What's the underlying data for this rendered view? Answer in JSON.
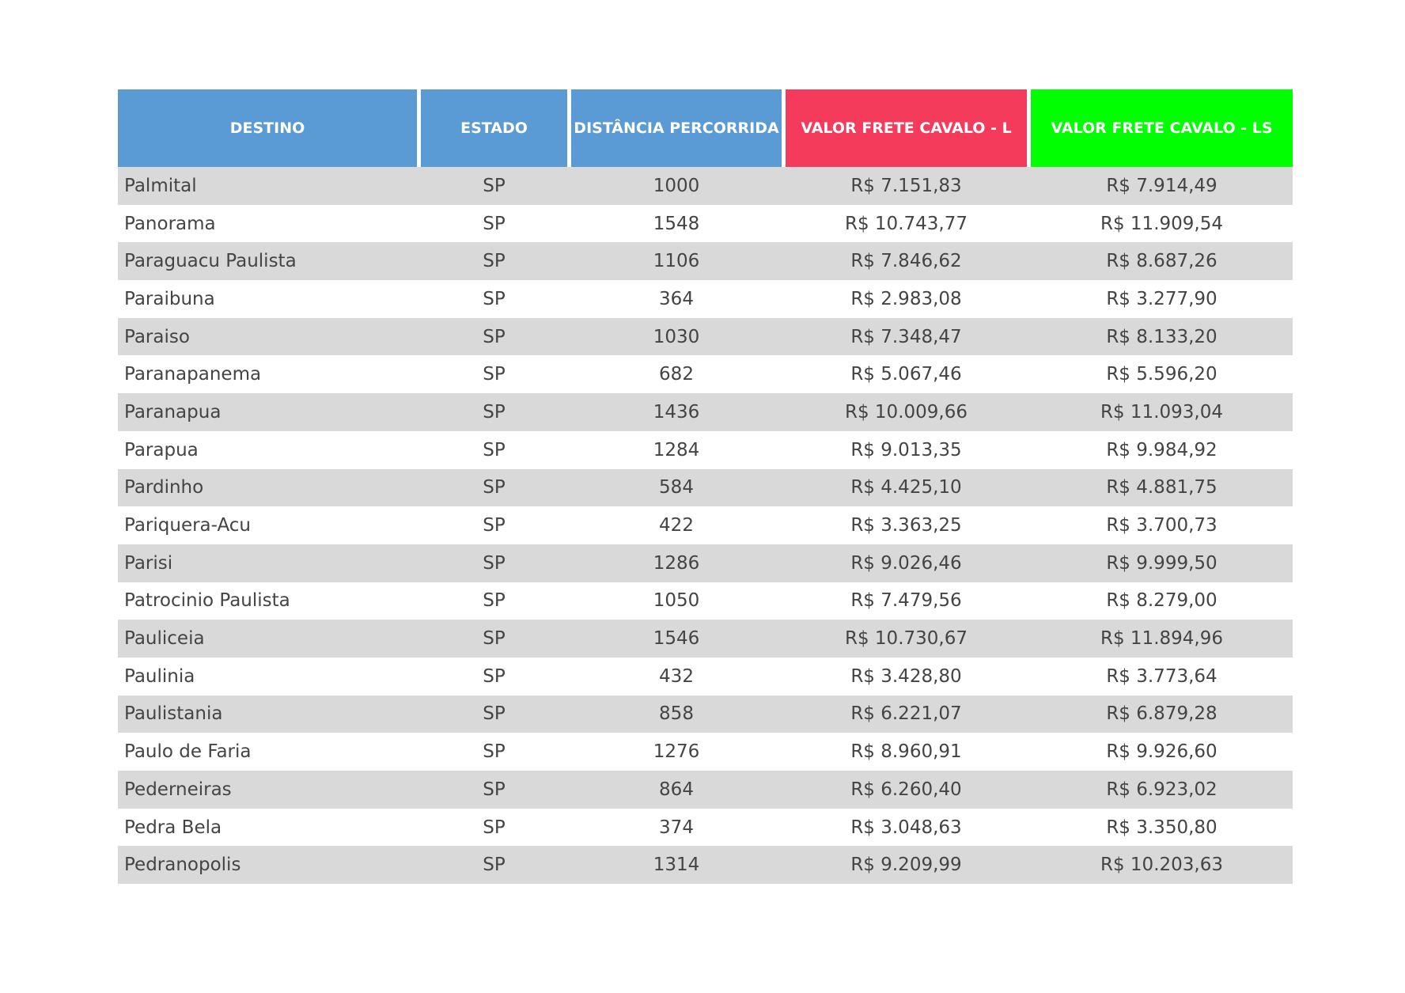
{
  "headers": [
    "DESTINO",
    "ESTADO",
    "DISTÂNCIA PERCORRIDA",
    "VALOR FRETE CAVALO - L",
    "VALOR FRETE CAVALO - LS"
  ],
  "colors": {
    "header_blue": "#5b9bd5",
    "header_red": "#f53b5c",
    "header_green": "#00ff00",
    "row_stripe": "#d9d9d9"
  },
  "rows": [
    [
      "Palmital",
      "SP",
      "1000",
      "R$ 7.151,83",
      "R$ 7.914,49"
    ],
    [
      "Panorama",
      "SP",
      "1548",
      "R$ 10.743,77",
      "R$ 11.909,54"
    ],
    [
      "Paraguacu Paulista",
      "SP",
      "1106",
      "R$ 7.846,62",
      "R$ 8.687,26"
    ],
    [
      "Paraibuna",
      "SP",
      "364",
      "R$ 2.983,08",
      "R$ 3.277,90"
    ],
    [
      "Paraiso",
      "SP",
      "1030",
      "R$ 7.348,47",
      "R$ 8.133,20"
    ],
    [
      "Paranapanema",
      "SP",
      "682",
      "R$ 5.067,46",
      "R$ 5.596,20"
    ],
    [
      "Paranapua",
      "SP",
      "1436",
      "R$ 10.009,66",
      "R$ 11.093,04"
    ],
    [
      "Parapua",
      "SP",
      "1284",
      "R$ 9.013,35",
      "R$ 9.984,92"
    ],
    [
      "Pardinho",
      "SP",
      "584",
      "R$ 4.425,10",
      "R$ 4.881,75"
    ],
    [
      "Pariquera-Acu",
      "SP",
      "422",
      "R$ 3.363,25",
      "R$ 3.700,73"
    ],
    [
      "Parisi",
      "SP",
      "1286",
      "R$ 9.026,46",
      "R$ 9.999,50"
    ],
    [
      "Patrocinio Paulista",
      "SP",
      "1050",
      "R$ 7.479,56",
      "R$ 8.279,00"
    ],
    [
      "Pauliceia",
      "SP",
      "1546",
      "R$ 10.730,67",
      "R$ 11.894,96"
    ],
    [
      "Paulinia",
      "SP",
      "432",
      "R$ 3.428,80",
      "R$ 3.773,64"
    ],
    [
      "Paulistania",
      "SP",
      "858",
      "R$ 6.221,07",
      "R$ 6.879,28"
    ],
    [
      "Paulo de Faria",
      "SP",
      "1276",
      "R$ 8.960,91",
      "R$ 9.926,60"
    ],
    [
      "Pederneiras",
      "SP",
      "864",
      "R$ 6.260,40",
      "R$ 6.923,02"
    ],
    [
      "Pedra Bela",
      "SP",
      "374",
      "R$ 3.048,63",
      "R$ 3.350,80"
    ],
    [
      "Pedranopolis",
      "SP",
      "1314",
      "R$ 9.209,99",
      "R$ 10.203,63"
    ]
  ]
}
